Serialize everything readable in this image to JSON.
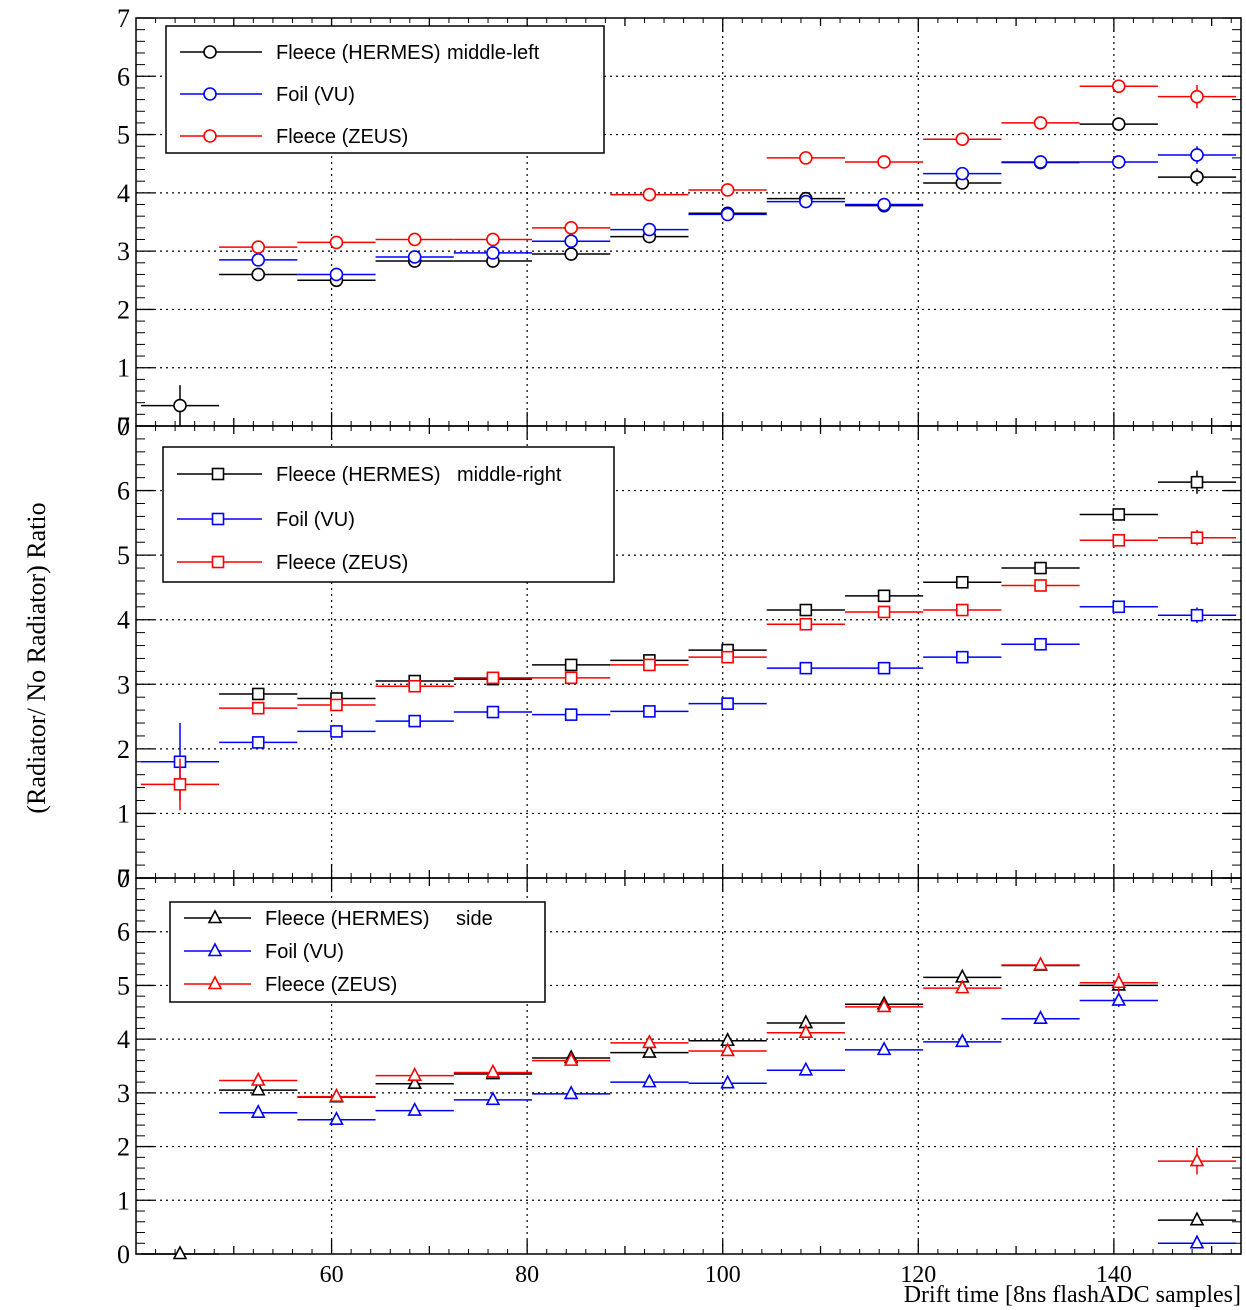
{
  "colors": {
    "Fleece (HERMES)": "#000000",
    "Foil (VU)": "#0000ff",
    "Fleece (ZEUS)": "#ff0000"
  },
  "ylabel": "(Radiator/ No Radiator) Ratio",
  "xlabel": "Drift time [8ns flashADC samples]",
  "chart_data": [
    {
      "type": "scatter",
      "panel_label": "middle-left",
      "marker": "circle",
      "xlim": [
        40,
        153
      ],
      "ylim": [
        0,
        7
      ],
      "yticks": [
        "0",
        "1",
        "2",
        "3",
        "4",
        "5",
        "6",
        "7"
      ],
      "grid": true,
      "legend_position": "top-left",
      "bin_half_width": 4,
      "series": [
        {
          "name": "Fleece (HERMES)",
          "color": "#000000",
          "x": [
            44.5,
            52.5,
            60.5,
            68.5,
            76.5,
            84.5,
            92.5,
            100.5,
            108.5,
            116.5,
            124.5,
            132.5,
            140.5,
            148.5
          ],
          "y": [
            0.35,
            2.6,
            2.5,
            2.83,
            2.83,
            2.95,
            3.25,
            3.65,
            3.9,
            3.78,
            4.17,
            4.52,
            5.18,
            4.27
          ],
          "yerr": [
            0.35,
            0.03,
            0.03,
            0.03,
            0.03,
            0.03,
            0.03,
            0.03,
            0.03,
            0.03,
            0.05,
            0.05,
            0.06,
            0.15
          ]
        },
        {
          "name": "Foil (VU)",
          "color": "#0000ff",
          "x": [
            52.5,
            60.5,
            68.5,
            76.5,
            84.5,
            92.5,
            100.5,
            108.5,
            116.5,
            124.5,
            132.5,
            140.5,
            148.5
          ],
          "y": [
            2.85,
            2.6,
            2.9,
            2.97,
            3.17,
            3.37,
            3.63,
            3.85,
            3.8,
            4.33,
            4.53,
            4.53,
            4.65
          ],
          "yerr": [
            0.03,
            0.03,
            0.03,
            0.03,
            0.03,
            0.03,
            0.03,
            0.03,
            0.03,
            0.04,
            0.05,
            0.05,
            0.15
          ]
        },
        {
          "name": "Fleece (ZEUS)",
          "color": "#ff0000",
          "x": [
            52.5,
            60.5,
            68.5,
            76.5,
            84.5,
            92.5,
            100.5,
            108.5,
            116.5,
            124.5,
            132.5,
            140.5,
            148.5
          ],
          "y": [
            3.07,
            3.15,
            3.2,
            3.2,
            3.4,
            3.97,
            4.05,
            4.6,
            4.53,
            4.92,
            5.2,
            5.83,
            5.65
          ],
          "yerr": [
            0.03,
            0.03,
            0.03,
            0.03,
            0.03,
            0.03,
            0.03,
            0.04,
            0.04,
            0.05,
            0.05,
            0.08,
            0.2
          ]
        }
      ]
    },
    {
      "type": "scatter",
      "panel_label": "middle-right",
      "marker": "square",
      "xlim": [
        40,
        153
      ],
      "ylim": [
        0,
        7
      ],
      "yticks": [
        "0",
        "1",
        "2",
        "3",
        "4",
        "5",
        "6",
        "7"
      ],
      "grid": true,
      "legend_position": "top-left",
      "bin_half_width": 4,
      "series": [
        {
          "name": "Fleece (HERMES)",
          "color": "#000000",
          "x": [
            52.5,
            60.5,
            68.5,
            76.5,
            84.5,
            92.5,
            100.5,
            108.5,
            116.5,
            124.5,
            132.5,
            140.5,
            148.5
          ],
          "y": [
            2.85,
            2.78,
            3.05,
            3.08,
            3.3,
            3.37,
            3.53,
            4.15,
            4.37,
            4.58,
            4.8,
            5.63,
            6.13
          ],
          "yerr": [
            0.03,
            0.03,
            0.03,
            0.03,
            0.03,
            0.03,
            0.03,
            0.05,
            0.05,
            0.05,
            0.06,
            0.08,
            0.18
          ]
        },
        {
          "name": "Foil (VU)",
          "color": "#0000ff",
          "x": [
            44.5,
            52.5,
            60.5,
            68.5,
            76.5,
            84.5,
            92.5,
            100.5,
            108.5,
            116.5,
            124.5,
            132.5,
            140.5,
            148.5
          ],
          "y": [
            1.8,
            2.1,
            2.27,
            2.43,
            2.57,
            2.53,
            2.58,
            2.7,
            3.25,
            3.25,
            3.42,
            3.62,
            4.2,
            4.07
          ],
          "yerr": [
            0.6,
            0.03,
            0.03,
            0.03,
            0.03,
            0.03,
            0.03,
            0.03,
            0.03,
            0.03,
            0.04,
            0.04,
            0.06,
            0.12
          ]
        },
        {
          "name": "Fleece (ZEUS)",
          "color": "#ff0000",
          "x": [
            44.5,
            52.5,
            60.5,
            68.5,
            76.5,
            84.5,
            92.5,
            100.5,
            108.5,
            116.5,
            124.5,
            132.5,
            140.5,
            148.5
          ],
          "y": [
            1.45,
            2.63,
            2.68,
            2.97,
            3.1,
            3.1,
            3.3,
            3.42,
            3.93,
            4.12,
            4.15,
            4.53,
            5.23,
            5.27
          ],
          "yerr": [
            0.4,
            0.03,
            0.03,
            0.03,
            0.03,
            0.03,
            0.03,
            0.03,
            0.04,
            0.04,
            0.05,
            0.05,
            0.07,
            0.12
          ]
        }
      ]
    },
    {
      "type": "scatter",
      "panel_label": "side",
      "marker": "triangle",
      "xlim": [
        40,
        153
      ],
      "ylim": [
        0,
        7
      ],
      "yticks": [
        "0",
        "1",
        "2",
        "3",
        "4",
        "5",
        "6",
        "7"
      ],
      "xticks": [
        60,
        80,
        100,
        120,
        140
      ],
      "grid": true,
      "legend_position": "top-left",
      "bin_half_width": 4,
      "series": [
        {
          "name": "Fleece (HERMES)",
          "color": "#000000",
          "x": [
            44.5,
            52.5,
            60.5,
            68.5,
            76.5,
            84.5,
            92.5,
            100.5,
            108.5,
            116.5,
            124.5,
            132.5,
            140.5,
            148.5
          ],
          "y": [
            0.0,
            3.05,
            2.92,
            3.17,
            3.35,
            3.65,
            3.75,
            3.97,
            4.3,
            4.65,
            5.15,
            5.37,
            5.0,
            0.63
          ],
          "yerr": [
            0.02,
            0.03,
            0.03,
            0.03,
            0.03,
            0.03,
            0.03,
            0.03,
            0.04,
            0.04,
            0.05,
            0.06,
            0.08,
            0.05
          ]
        },
        {
          "name": "Foil (VU)",
          "color": "#0000ff",
          "x": [
            52.5,
            60.5,
            68.5,
            76.5,
            84.5,
            92.5,
            100.5,
            108.5,
            116.5,
            124.5,
            132.5,
            140.5,
            148.5
          ],
          "y": [
            2.63,
            2.5,
            2.67,
            2.87,
            2.98,
            3.2,
            3.18,
            3.42,
            3.8,
            3.95,
            4.38,
            4.72,
            0.2
          ],
          "yerr": [
            0.03,
            0.03,
            0.03,
            0.03,
            0.03,
            0.03,
            0.03,
            0.03,
            0.04,
            0.04,
            0.05,
            0.12,
            0.03
          ]
        },
        {
          "name": "Fleece (ZEUS)",
          "color": "#ff0000",
          "x": [
            52.5,
            60.5,
            68.5,
            76.5,
            84.5,
            92.5,
            100.5,
            108.5,
            116.5,
            124.5,
            132.5,
            140.5,
            148.5
          ],
          "y": [
            3.23,
            2.93,
            3.32,
            3.38,
            3.6,
            3.93,
            3.78,
            4.12,
            4.6,
            4.95,
            5.38,
            5.05,
            1.73
          ],
          "yerr": [
            0.03,
            0.03,
            0.03,
            0.03,
            0.03,
            0.03,
            0.03,
            0.04,
            0.04,
            0.05,
            0.06,
            0.18,
            0.25
          ]
        }
      ]
    }
  ]
}
